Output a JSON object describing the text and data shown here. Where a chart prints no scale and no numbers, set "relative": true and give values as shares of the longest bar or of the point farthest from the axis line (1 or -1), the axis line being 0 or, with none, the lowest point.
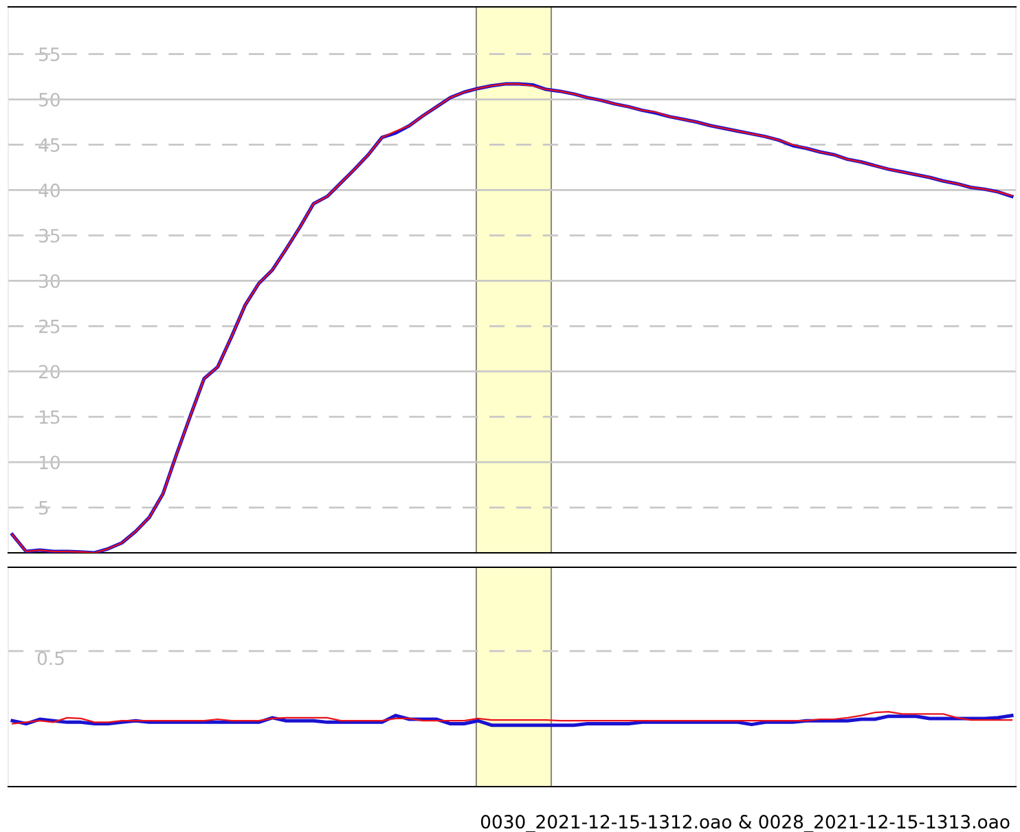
{
  "chart_data": [
    {
      "type": "line",
      "categories": [
        null,
        null,
        null,
        null,
        null,
        null,
        null,
        null,
        null,
        null,
        null,
        null,
        null,
        null,
        null,
        null,
        null,
        null,
        null,
        null,
        null,
        null,
        null,
        null,
        null,
        null,
        null,
        null,
        null,
        null,
        null,
        null,
        null,
        null,
        null,
        null,
        null,
        null,
        null,
        null,
        null,
        null,
        null,
        null,
        null,
        null,
        null,
        null,
        null,
        null,
        null,
        null,
        null,
        null,
        null,
        null,
        null,
        null,
        null,
        null,
        null,
        null,
        null,
        null,
        null,
        null,
        null,
        null,
        null,
        null,
        null,
        null,
        null,
        null
      ],
      "series": [
        {
          "color": "#1a12d0",
          "values": [
            2.0,
            0.15,
            0.3,
            0.15,
            0.15,
            0.1,
            0,
            0.45,
            1.1,
            2.35,
            3.9,
            6.5,
            10.9,
            15.1,
            19.2,
            20.5,
            23.8,
            27.3,
            29.7,
            31.2,
            33.5,
            35.9,
            38.5,
            39.3,
            40.8,
            42.3,
            43.9,
            45.8,
            46.3,
            47.1,
            48.2,
            49.2,
            50.2,
            50.8,
            51.2,
            51.5,
            51.7,
            51.7,
            51.6,
            51.1,
            50.9,
            50.6,
            50.2,
            49.9,
            49.5,
            49.2,
            48.8,
            48.5,
            48.1,
            47.8,
            47.5,
            47.1,
            46.8,
            46.5,
            46.2,
            45.9,
            45.5,
            44.9,
            44.6,
            44.2,
            43.9,
            43.4,
            43.1,
            42.7,
            42.3,
            42.0,
            41.7,
            41.4,
            41.0,
            40.7,
            40.3,
            40.1,
            39.8,
            39.3
          ]
        },
        {
          "color": "#e8121a",
          "values": [
            2.0,
            0.15,
            0.3,
            0.15,
            0.15,
            0.1,
            0,
            0.45,
            1.1,
            2.35,
            3.9,
            6.5,
            10.9,
            15.1,
            19.2,
            20.5,
            23.8,
            27.3,
            29.7,
            31.2,
            33.5,
            35.9,
            38.5,
            39.3,
            40.8,
            42.3,
            43.9,
            45.8,
            46.5,
            47.1,
            48.2,
            49.2,
            50.2,
            50.8,
            51.2,
            51.5,
            51.7,
            51.7,
            51.5,
            51.1,
            50.9,
            50.6,
            50.2,
            49.9,
            49.5,
            49.2,
            48.8,
            48.6,
            48.1,
            47.8,
            47.5,
            47.1,
            46.8,
            46.5,
            46.2,
            45.9,
            45.5,
            45.0,
            44.6,
            44.2,
            43.9,
            43.4,
            43.1,
            42.7,
            42.3,
            42.0,
            41.7,
            41.4,
            41.0,
            40.7,
            40.3,
            40.1,
            39.8,
            39.4
          ]
        }
      ],
      "ylim": [
        0,
        60.2
      ],
      "yticks": [
        5,
        10,
        15,
        20,
        25,
        30,
        35,
        40,
        45,
        50,
        55
      ],
      "grid": "y",
      "tick_labels": "y"
    },
    {
      "type": "line",
      "relative": true,
      "categories": [
        null,
        null,
        null,
        null,
        null,
        null,
        null,
        null,
        null,
        null,
        null,
        null,
        null,
        null,
        null,
        null,
        null,
        null,
        null,
        null,
        null,
        null,
        null,
        null,
        null,
        null,
        null,
        null,
        null,
        null,
        null,
        null,
        null,
        null,
        null,
        null,
        null,
        null,
        null,
        null,
        null,
        null,
        null,
        null,
        null,
        null,
        null,
        null,
        null,
        null,
        null,
        null,
        null,
        null,
        null,
        null,
        null,
        null,
        null,
        null,
        null,
        null,
        null,
        null,
        null,
        null,
        null,
        null,
        null,
        null,
        null,
        null,
        null,
        null
      ],
      "series": [
        {
          "color": "#1a12d0",
          "values": [
            0.88,
            0.84,
            0.9,
            0.88,
            0.86,
            0.86,
            0.84,
            0.84,
            0.86,
            0.88,
            0.86,
            0.86,
            0.86,
            0.86,
            0.86,
            0.86,
            0.86,
            0.86,
            0.86,
            0.92,
            0.88,
            0.88,
            0.88,
            0.86,
            0.86,
            0.86,
            0.86,
            0.86,
            0.95,
            0.9,
            0.9,
            0.9,
            0.84,
            0.84,
            0.88,
            0.82,
            0.82,
            0.82,
            0.82,
            0.82,
            0.82,
            0.82,
            0.84,
            0.84,
            0.84,
            0.84,
            0.86,
            0.86,
            0.86,
            0.86,
            0.86,
            0.86,
            0.86,
            0.86,
            0.83,
            0.86,
            0.86,
            0.86,
            0.88,
            0.88,
            0.88,
            0.88,
            0.9,
            0.9,
            0.94,
            0.94,
            0.94,
            0.91,
            0.91,
            0.91,
            0.91,
            0.91,
            0.92,
            0.95
          ]
        },
        {
          "color": "#e8121a",
          "values": [
            0.84,
            0.86,
            0.88,
            0.86,
            0.92,
            0.91,
            0.86,
            0.86,
            0.88,
            0.88,
            0.88,
            0.88,
            0.88,
            0.88,
            0.88,
            0.9,
            0.88,
            0.88,
            0.88,
            0.91,
            0.92,
            0.92,
            0.92,
            0.92,
            0.88,
            0.88,
            0.88,
            0.88,
            0.91,
            0.91,
            0.88,
            0.88,
            0.88,
            0.88,
            0.91,
            0.89,
            0.89,
            0.89,
            0.89,
            0.89,
            0.88,
            0.88,
            0.88,
            0.88,
            0.88,
            0.88,
            0.88,
            0.88,
            0.88,
            0.88,
            0.88,
            0.88,
            0.88,
            0.88,
            0.88,
            0.88,
            0.88,
            0.88,
            0.88,
            0.9,
            0.9,
            0.92,
            0.95,
            0.99,
            1,
            0.97,
            0.97,
            0.97,
            0.97,
            0.92,
            0.89,
            0.89,
            0.89,
            0.89
          ]
        }
      ],
      "ref_lines": [
        {
          "axis": "y",
          "value": 1.81,
          "color": "#c8c8c8",
          "line_style": "dashed"
        }
      ],
      "annotations": [
        "0.5",
        "0030_2021-12-15-1312.oao & 0028_2021-12-15-1313.oao"
      ]
    }
  ]
}
